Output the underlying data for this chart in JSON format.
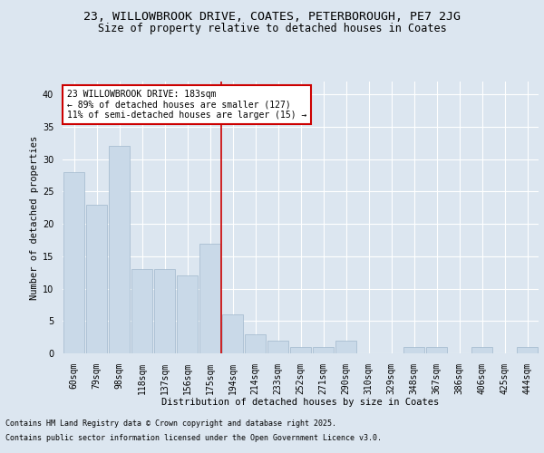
{
  "title_line1": "23, WILLOWBROOK DRIVE, COATES, PETERBOROUGH, PE7 2JG",
  "title_line2": "Size of property relative to detached houses in Coates",
  "xlabel": "Distribution of detached houses by size in Coates",
  "ylabel": "Number of detached properties",
  "categories": [
    "60sqm",
    "79sqm",
    "98sqm",
    "118sqm",
    "137sqm",
    "156sqm",
    "175sqm",
    "194sqm",
    "214sqm",
    "233sqm",
    "252sqm",
    "271sqm",
    "290sqm",
    "310sqm",
    "329sqm",
    "348sqm",
    "367sqm",
    "386sqm",
    "406sqm",
    "425sqm",
    "444sqm"
  ],
  "values": [
    28,
    23,
    32,
    13,
    13,
    12,
    17,
    6,
    3,
    2,
    1,
    1,
    2,
    0,
    0,
    1,
    1,
    0,
    1,
    0,
    1
  ],
  "bar_color": "#c9d9e8",
  "bar_edge_color": "#a0b8cc",
  "vline_index": 7,
  "vline_color": "#cc0000",
  "annotation_text": "23 WILLOWBROOK DRIVE: 183sqm\n← 89% of detached houses are smaller (127)\n11% of semi-detached houses are larger (15) →",
  "annotation_box_color": "#ffffff",
  "annotation_box_edge": "#cc0000",
  "ylim": [
    0,
    42
  ],
  "yticks": [
    0,
    5,
    10,
    15,
    20,
    25,
    30,
    35,
    40
  ],
  "background_color": "#dce6f0",
  "plot_bg_color": "#dce6f0",
  "grid_color": "#ffffff",
  "footer_line1": "Contains HM Land Registry data © Crown copyright and database right 2025.",
  "footer_line2": "Contains public sector information licensed under the Open Government Licence v3.0.",
  "title_fontsize": 9.5,
  "subtitle_fontsize": 8.5,
  "axis_label_fontsize": 7.5,
  "tick_fontsize": 7,
  "annotation_fontsize": 7,
  "footer_fontsize": 6
}
